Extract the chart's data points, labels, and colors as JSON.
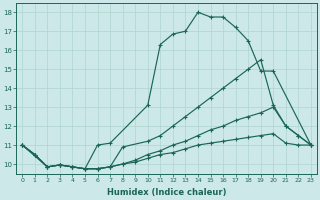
{
  "xlabel": "Humidex (Indice chaleur)",
  "bg_color": "#cde8e8",
  "grid_color": "#b0d4cc",
  "line_color": "#1a6655",
  "xlim": [
    -0.5,
    23.5
  ],
  "ylim": [
    9.5,
    18.5
  ],
  "xticks": [
    0,
    1,
    2,
    3,
    4,
    5,
    6,
    7,
    8,
    9,
    10,
    11,
    12,
    13,
    14,
    15,
    16,
    17,
    18,
    19,
    20,
    21,
    22,
    23
  ],
  "yticks": [
    10,
    11,
    12,
    13,
    14,
    15,
    16,
    17,
    18
  ],
  "line1_x": [
    0,
    1,
    2,
    3,
    4,
    5,
    6,
    7,
    10,
    11,
    12,
    13,
    14,
    15,
    16,
    17,
    18,
    19,
    20,
    23
  ],
  "line1_y": [
    11,
    10.5,
    9.85,
    9.95,
    9.85,
    9.75,
    11.0,
    11.1,
    13.1,
    16.3,
    16.85,
    17.0,
    18.0,
    17.75,
    17.75,
    17.2,
    16.5,
    14.9,
    14.9,
    11.0
  ],
  "line2_x": [
    0,
    1,
    2,
    3,
    4,
    5,
    6,
    7,
    8,
    10,
    11,
    12,
    13,
    14,
    15,
    16,
    17,
    18,
    19,
    20,
    21,
    22,
    23
  ],
  "line2_y": [
    11,
    10.5,
    9.85,
    9.95,
    9.85,
    9.75,
    9.75,
    9.85,
    10.9,
    11.2,
    11.5,
    12.0,
    12.5,
    13.0,
    13.5,
    14.0,
    14.5,
    15.0,
    15.5,
    13.1,
    12.0,
    11.5,
    11.0
  ],
  "line3_x": [
    0,
    2,
    3,
    4,
    5,
    6,
    7,
    8,
    9,
    10,
    11,
    12,
    13,
    14,
    15,
    16,
    17,
    18,
    19,
    20,
    21,
    22,
    23
  ],
  "line3_y": [
    11,
    9.85,
    9.95,
    9.85,
    9.75,
    9.75,
    9.85,
    10.0,
    10.2,
    10.5,
    10.7,
    11.0,
    11.2,
    11.5,
    11.8,
    12.0,
    12.3,
    12.5,
    12.7,
    13.0,
    12.0,
    11.5,
    11.0
  ],
  "line4_x": [
    0,
    1,
    2,
    3,
    4,
    5,
    6,
    7,
    8,
    9,
    10,
    11,
    12,
    13,
    14,
    15,
    16,
    17,
    18,
    19,
    20,
    21,
    22,
    23
  ],
  "line4_y": [
    11,
    10.5,
    9.85,
    9.95,
    9.85,
    9.75,
    9.75,
    9.85,
    10.0,
    10.1,
    10.3,
    10.5,
    10.6,
    10.8,
    11.0,
    11.1,
    11.2,
    11.3,
    11.4,
    11.5,
    11.6,
    11.1,
    11.0,
    11.0
  ]
}
